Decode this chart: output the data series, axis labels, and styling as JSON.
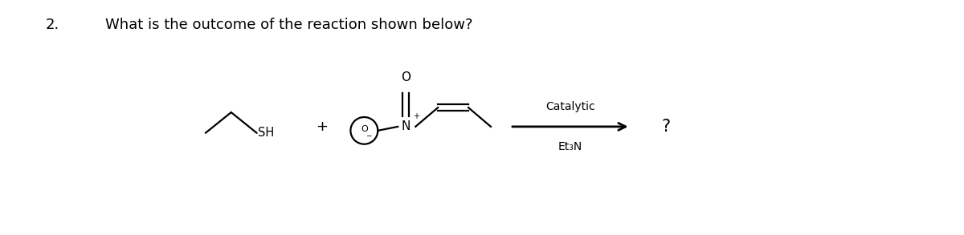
{
  "question_number": "2.",
  "question_text": "What is the outcome of the reaction shown below?",
  "background_color": "#ffffff",
  "text_color": "#000000",
  "fig_width": 12.0,
  "fig_height": 2.93,
  "dpi": 100,
  "q_num_fontsize": 13,
  "q_text_fontsize": 13,
  "arrow_above": "Catalytic",
  "arrow_below": "Et₃N",
  "question_mark": "?"
}
